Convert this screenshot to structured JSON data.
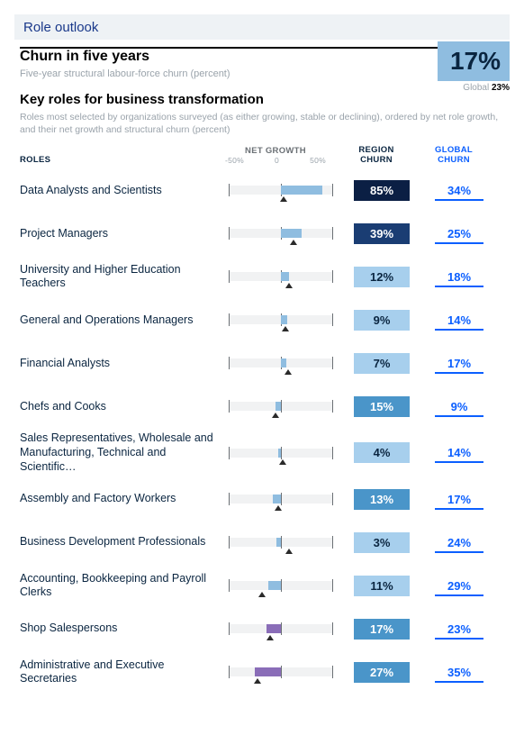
{
  "section_title": "Role outlook",
  "churn": {
    "title": "Churn in five years",
    "subtitle": "Five-year structural labour-force churn (percent)",
    "pct": "17%",
    "global_label": "Global",
    "global_pct": "23%"
  },
  "key_roles": {
    "title": "Key roles for business transformation",
    "subtitle": "Roles most selected by organizations surveyed (as either growing, stable or declining), ordered by net role growth, and their net growth and structural churn (percent)",
    "header": {
      "roles": "ROLES",
      "net_growth": "NET GROWTH",
      "region": "REGION CHURN",
      "global": "GLOBAL CHURN",
      "tick_lo": "-50%",
      "tick_mid": "0",
      "tick_hi": "50%"
    },
    "axis": {
      "min": -50,
      "max": 50
    },
    "bar_colors": {
      "default": "#8fbde0",
      "alt": "#8a6db8"
    },
    "region_palette": {
      "vdark": "#0b1f44",
      "dark": "#1a3d73",
      "mid": "#4a95c9",
      "light": "#a7cfed"
    },
    "rows": [
      {
        "name": "Data Analysts and Scientists",
        "grow_lo": 0,
        "grow_hi": 40,
        "marker": 3,
        "region": "85%",
        "region_shade": "vdark",
        "global": "34%"
      },
      {
        "name": "Project Managers",
        "grow_lo": 0,
        "grow_hi": 20,
        "marker": 12,
        "region": "39%",
        "region_shade": "dark",
        "global": "25%"
      },
      {
        "name": "University and Higher Education Teachers",
        "grow_lo": 0,
        "grow_hi": 8,
        "marker": 8,
        "region": "12%",
        "region_shade": "light",
        "global": "18%"
      },
      {
        "name": "General and Operations Managers",
        "grow_lo": 0,
        "grow_hi": 6,
        "marker": 4,
        "region": "9%",
        "region_shade": "light",
        "global": "14%"
      },
      {
        "name": "Financial Analysts",
        "grow_lo": 0,
        "grow_hi": 5,
        "marker": 7,
        "region": "7%",
        "region_shade": "light",
        "global": "17%"
      },
      {
        "name": "Chefs and Cooks",
        "grow_lo": -5,
        "grow_hi": 0,
        "marker": -5,
        "region": "15%",
        "region_shade": "mid",
        "global": "9%"
      },
      {
        "name": "Sales Representatives, Wholesale and Manufacturing, Technical and Scientific…",
        "grow_lo": -3,
        "grow_hi": 0,
        "marker": 2,
        "region": "4%",
        "region_shade": "light",
        "global": "14%"
      },
      {
        "name": "Assembly and Factory Workers",
        "grow_lo": -8,
        "grow_hi": 0,
        "marker": -3,
        "region": "13%",
        "region_shade": "mid",
        "global": "17%"
      },
      {
        "name": "Business Development Professionals",
        "grow_lo": -4,
        "grow_hi": 0,
        "marker": 8,
        "region": "3%",
        "region_shade": "light",
        "global": "24%"
      },
      {
        "name": "Accounting, Bookkeeping and Payroll Clerks",
        "grow_lo": -12,
        "grow_hi": 0,
        "marker": -18,
        "region": "11%",
        "region_shade": "light",
        "global": "29%"
      },
      {
        "name": "Shop Salespersons",
        "grow_lo": -14,
        "grow_hi": 0,
        "marker": -10,
        "region": "17%",
        "region_shade": "mid",
        "global": "23%",
        "bar_color": "alt"
      },
      {
        "name": "Administrative and Executive Secretaries",
        "grow_lo": -25,
        "grow_hi": 0,
        "marker": -22,
        "region": "27%",
        "region_shade": "mid",
        "global": "35%",
        "bar_color": "alt"
      }
    ]
  }
}
